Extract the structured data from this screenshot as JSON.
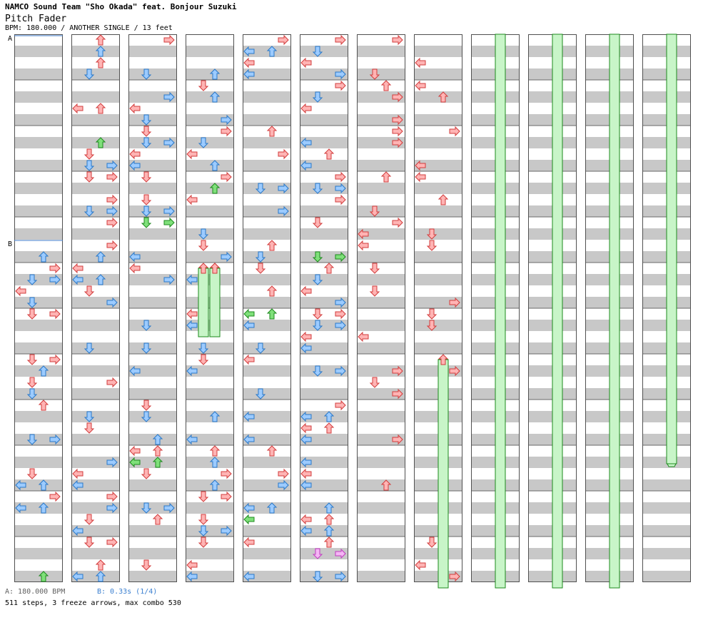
{
  "header": {
    "artist": "NAMCO Sound Team \"Sho Okada\" feat. Bonjour Suzuki",
    "title": "Pitch Fader",
    "info": "BPM: 180.000 / ANOTHER SINGLE / 13 feet"
  },
  "markers": {
    "a": "A",
    "b": "B"
  },
  "footer": {
    "bpm_a": "A: 180.000 BPM",
    "bpm_b": "B: 0.33s (1/4)",
    "stats": "511 steps, 3 freeze arrows, max combo 530"
  },
  "colors": {
    "stripe": "#c8c8c8",
    "border": "#505050",
    "red": "#ffb4b4",
    "red_stroke": "#d23c3c",
    "blue": "#9ccbff",
    "blue_stroke": "#2a78c8",
    "green": "#7fe07a",
    "green_stroke": "#1d8a1d",
    "pink": "#f5b6f5",
    "pink_stroke": "#c03cc0",
    "freeze": "#c8f5c8",
    "freeze_stroke": "#1d8a1d",
    "marker": "#3c78c8"
  },
  "chart": {
    "total_columns": 12,
    "columns_with_notes": 8,
    "note_columns": [
      1,
      2,
      3,
      4,
      5,
      6,
      7,
      8
    ],
    "freeze_arrows": [
      {
        "column": 4,
        "lane": 1,
        "start_row": 20,
        "end_row": 26
      },
      {
        "column": 4,
        "lane": 2,
        "start_row": 20,
        "end_row": 26
      },
      {
        "column": 8,
        "lane": 2,
        "start_row": 28,
        "end_row": 48
      }
    ],
    "freeze_columns": [
      9,
      10,
      11,
      12
    ]
  }
}
